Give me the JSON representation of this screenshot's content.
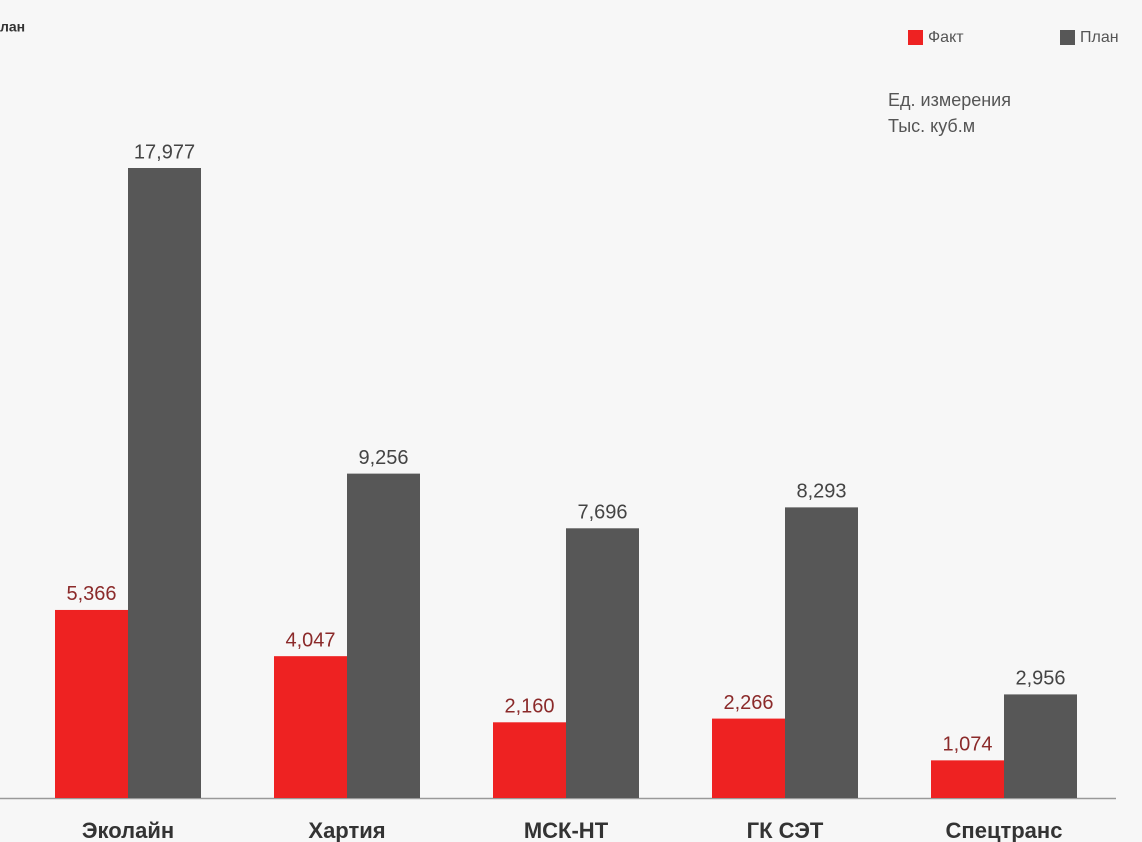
{
  "chart_data": {
    "type": "bar",
    "title": "лан",
    "annotations": [
      "Ед. измерения",
      "Тыс. куб.м"
    ],
    "categories": [
      "Эколайн",
      "Хартия",
      "МСК-НТ",
      "ГК СЭТ",
      "Спецтранс"
    ],
    "legend": "top-right",
    "series": [
      {
        "name": "Факт",
        "color": "#ee2222",
        "label_color": "#8b2a2a",
        "values": [
          5366,
          4047,
          2160,
          2266,
          1074
        ],
        "value_labels": [
          "5,366",
          "4,047",
          "2,160",
          "2,266",
          "1,074"
        ]
      },
      {
        "name": "План",
        "color": "#575757",
        "label_color": "#444444",
        "values": [
          17977,
          9256,
          7696,
          8293,
          2956
        ],
        "value_labels": [
          "17,977",
          "9,256",
          "7,696",
          "8,293",
          "2,956"
        ]
      }
    ]
  }
}
